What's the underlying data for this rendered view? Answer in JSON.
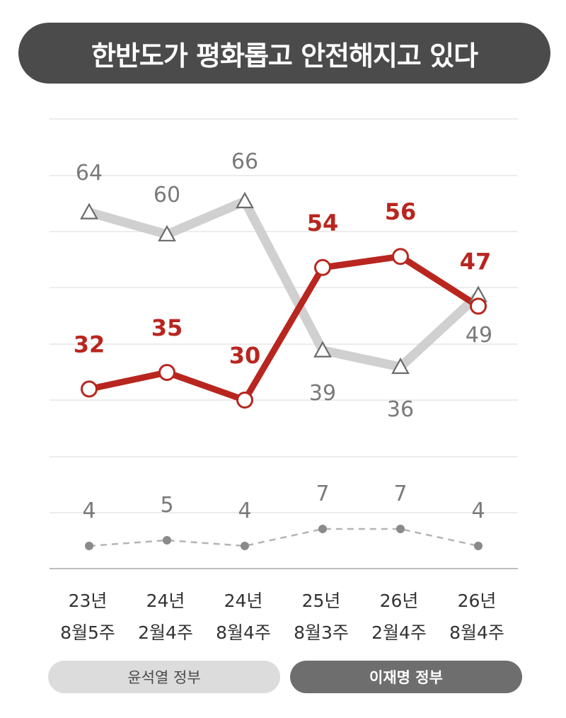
{
  "title": "한반도가 평화롭고 안전해지고 있다",
  "colors": {
    "lee": "#b8261f",
    "yoon": "#c8c8c8",
    "dunno": "#8a8a8a",
    "grid": "#e6e6e6",
    "title_bg": "#4b4b4b"
  },
  "legend": [
    {
      "label": "윤석열 정부",
      "series": "yoon"
    },
    {
      "label": "이재명 정부",
      "series": "lee"
    }
  ],
  "chart_data": {
    "type": "line",
    "title": "한반도가 평화롭고 안전해지고 있다",
    "categories": [
      [
        "23년",
        "8월5주"
      ],
      [
        "24년",
        "2월4주"
      ],
      [
        "24년",
        "8월4주"
      ],
      [
        "25년",
        "8월3주"
      ],
      [
        "26년",
        "2월4주"
      ],
      [
        "26년",
        "8월4주"
      ]
    ],
    "series": [
      {
        "key": "yoon",
        "values": [
          64,
          60,
          66,
          39,
          36,
          49
        ],
        "marker": "triangle",
        "style": "solid-light"
      },
      {
        "key": "lee",
        "values": [
          32,
          35,
          30,
          54,
          56,
          47
        ],
        "marker": "circle",
        "style": "solid-bold"
      },
      {
        "key": "dunno",
        "values": [
          4,
          5,
          4,
          7,
          7,
          4
        ],
        "marker": "dot",
        "style": "dashed"
      }
    ],
    "grid": true,
    "ylim": [
      0,
      80
    ]
  }
}
